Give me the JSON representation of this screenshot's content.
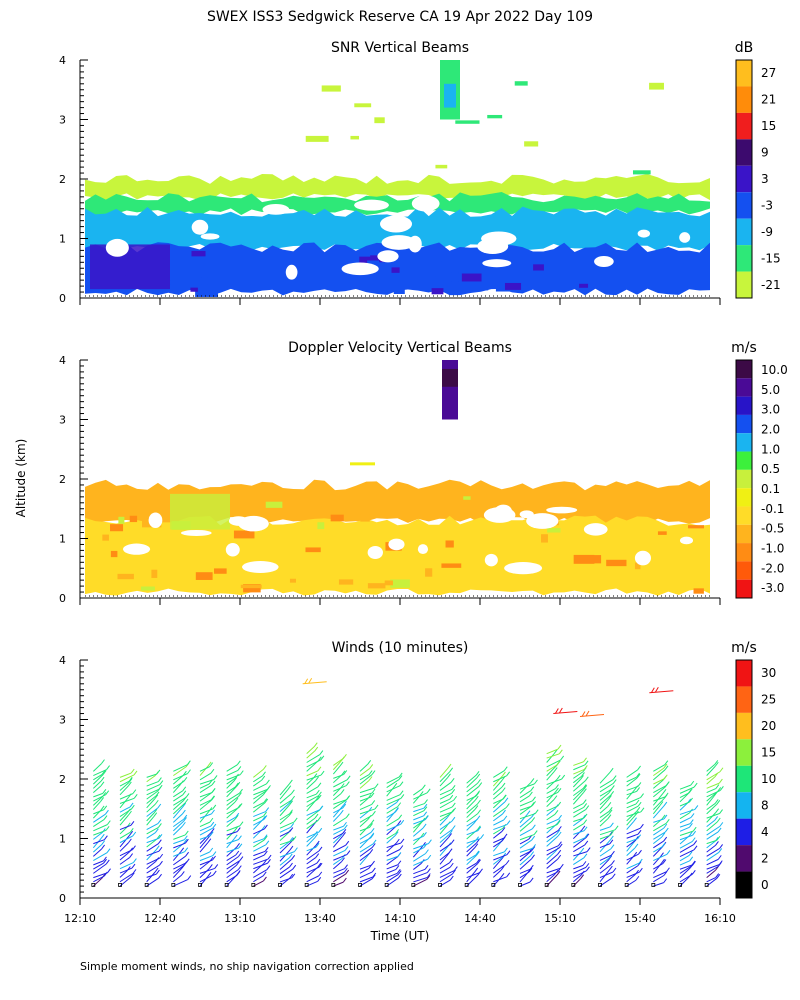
{
  "header": {
    "title": "SWEX ISS3 Sedgwick Reserve CA  19 Apr 2022 Day 109"
  },
  "y_axis_label": "Altitude (km)",
  "footnote": "Simple moment winds, no ship navigation correction applied",
  "colors": {
    "snr_scale": [
      "#c8f53c",
      "#2ee878",
      "#1ab4f0",
      "#1450f0",
      "#3a14c8",
      "#3c0a6e",
      "#f01e1e",
      "#ff8c0a",
      "#ffbe1e"
    ],
    "doppler_scale": [
      "#f01414",
      "#ff5a0a",
      "#ff8c14",
      "#ffb41e",
      "#ffdc28",
      "#f0f014",
      "#c8f03c",
      "#3cf03c",
      "#1ab4f0",
      "#1450f0",
      "#2814c8",
      "#4a0a96",
      "#3c0a46"
    ],
    "wind_scale": [
      "#000000",
      "#500a6e",
      "#1e1ee6",
      "#14b4f0",
      "#1ee678",
      "#8cf03c",
      "#ffbe1e",
      "#ff6414",
      "#f01414"
    ]
  },
  "chart_data": [
    {
      "type": "heatmap",
      "title": "SNR Vertical Beams",
      "unit": "dB",
      "ylim": [
        0,
        4
      ],
      "y_ticks": [
        "0",
        "1",
        "2",
        "3",
        "4"
      ],
      "colorbar_ticks": [
        "27",
        "21",
        "15",
        "9",
        "3",
        "-3",
        "-9",
        "-15",
        "-21"
      ],
      "layers_km": [
        {
          "label": "-21",
          "from": 1.7,
          "to": 2.0
        },
        {
          "label": "-15",
          "from": 1.45,
          "to": 1.7
        },
        {
          "label": "-9",
          "from": 0.85,
          "to": 1.45
        },
        {
          "label": "-3",
          "from": 0.1,
          "to": 0.85
        }
      ],
      "upper_patch_km": [
        3.0,
        4.0
      ]
    },
    {
      "type": "heatmap",
      "title": "Doppler Velocity Vertical Beams",
      "unit": "m/s",
      "ylim": [
        0,
        4
      ],
      "y_ticks": [
        "0",
        "1",
        "2",
        "3",
        "4"
      ],
      "colorbar_ticks": [
        "10.0",
        "5.0",
        "3.0",
        "2.0",
        "1.0",
        "0.5",
        "0.1",
        "-0.1",
        "-0.5",
        "-1.0",
        "-2.0",
        "-3.0"
      ],
      "layers_km": [
        {
          "label": "-0.5",
          "from": 1.3,
          "to": 1.9
        },
        {
          "label": "-0.1",
          "from": 0.1,
          "to": 1.3
        }
      ],
      "upper_patch_km": [
        3.0,
        4.0
      ]
    },
    {
      "type": "scatter",
      "title": "Winds (10 minutes)",
      "unit": "m/s",
      "ylim": [
        0,
        4
      ],
      "y_ticks": [
        "0",
        "1",
        "2",
        "3",
        "4"
      ],
      "colorbar_ticks": [
        "30",
        "25",
        "20",
        "15",
        "10",
        "8",
        "4",
        "2",
        "0"
      ],
      "x_ticks": [
        "12:10",
        "12:40",
        "13:10",
        "13:40",
        "14:10",
        "14:40",
        "15:10",
        "15:40",
        "16:10"
      ],
      "xlabel": "Time (UT)",
      "profile_times": [
        "12:15",
        "12:25",
        "12:35",
        "12:45",
        "12:55",
        "13:05",
        "13:15",
        "13:25",
        "13:35",
        "13:45",
        "13:55",
        "14:05",
        "14:15",
        "14:25",
        "14:35",
        "14:45",
        "14:55",
        "15:05",
        "15:15",
        "15:25",
        "15:35",
        "15:45",
        "15:55",
        "16:05"
      ],
      "profile_top_km": [
        2.2,
        2.1,
        2.1,
        2.2,
        2.2,
        2.2,
        2.1,
        1.8,
        2.5,
        2.3,
        2.2,
        2.0,
        1.8,
        2.1,
        2.0,
        2.1,
        1.9,
        2.5,
        2.3,
        2.0,
        2.1,
        2.2,
        1.9,
        2.2
      ],
      "upper_barbs": [
        {
          "time": "13:38",
          "alt_km": 3.6,
          "speed": 22
        },
        {
          "time": "15:12",
          "alt_km": 3.1,
          "speed": 30
        },
        {
          "time": "15:22",
          "alt_km": 3.05,
          "speed": 25
        },
        {
          "time": "15:48",
          "alt_km": 3.45,
          "speed": 30
        }
      ]
    }
  ]
}
